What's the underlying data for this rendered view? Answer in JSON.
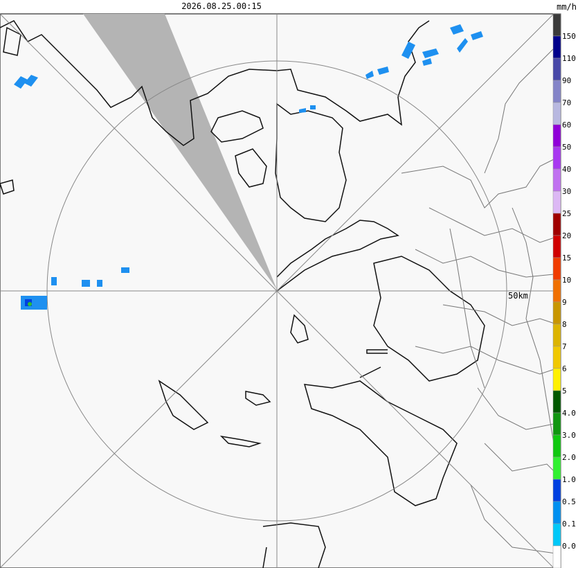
{
  "header": {
    "timestamp": "2026.08.25.00:15",
    "unit": "mm/h"
  },
  "map": {
    "range_label": "50km"
  },
  "legend": {
    "labels": [
      "150",
      "110",
      "90",
      "70",
      "60",
      "50",
      "40",
      "30",
      "25",
      "20",
      "15",
      "10",
      "9",
      "8",
      "7",
      "6",
      "5",
      "4.0",
      "3.0",
      "2.0",
      "1.0",
      "0.5",
      "0.1",
      "0.0"
    ],
    "colors": [
      "#3a3a3a",
      "#00008b",
      "#4848a8",
      "#8484c8",
      "#b8b8e0",
      "#9000d8",
      "#a838f0",
      "#c070f0",
      "#dcb8f4",
      "#a00000",
      "#d00000",
      "#f03c00",
      "#f07000",
      "#c89600",
      "#dcb400",
      "#f0c800",
      "#fff000",
      "#005800",
      "#109610",
      "#10c810",
      "#30f030",
      "#0040e0",
      "#0090f0",
      "#00c8f8",
      "#ffffff"
    ]
  }
}
